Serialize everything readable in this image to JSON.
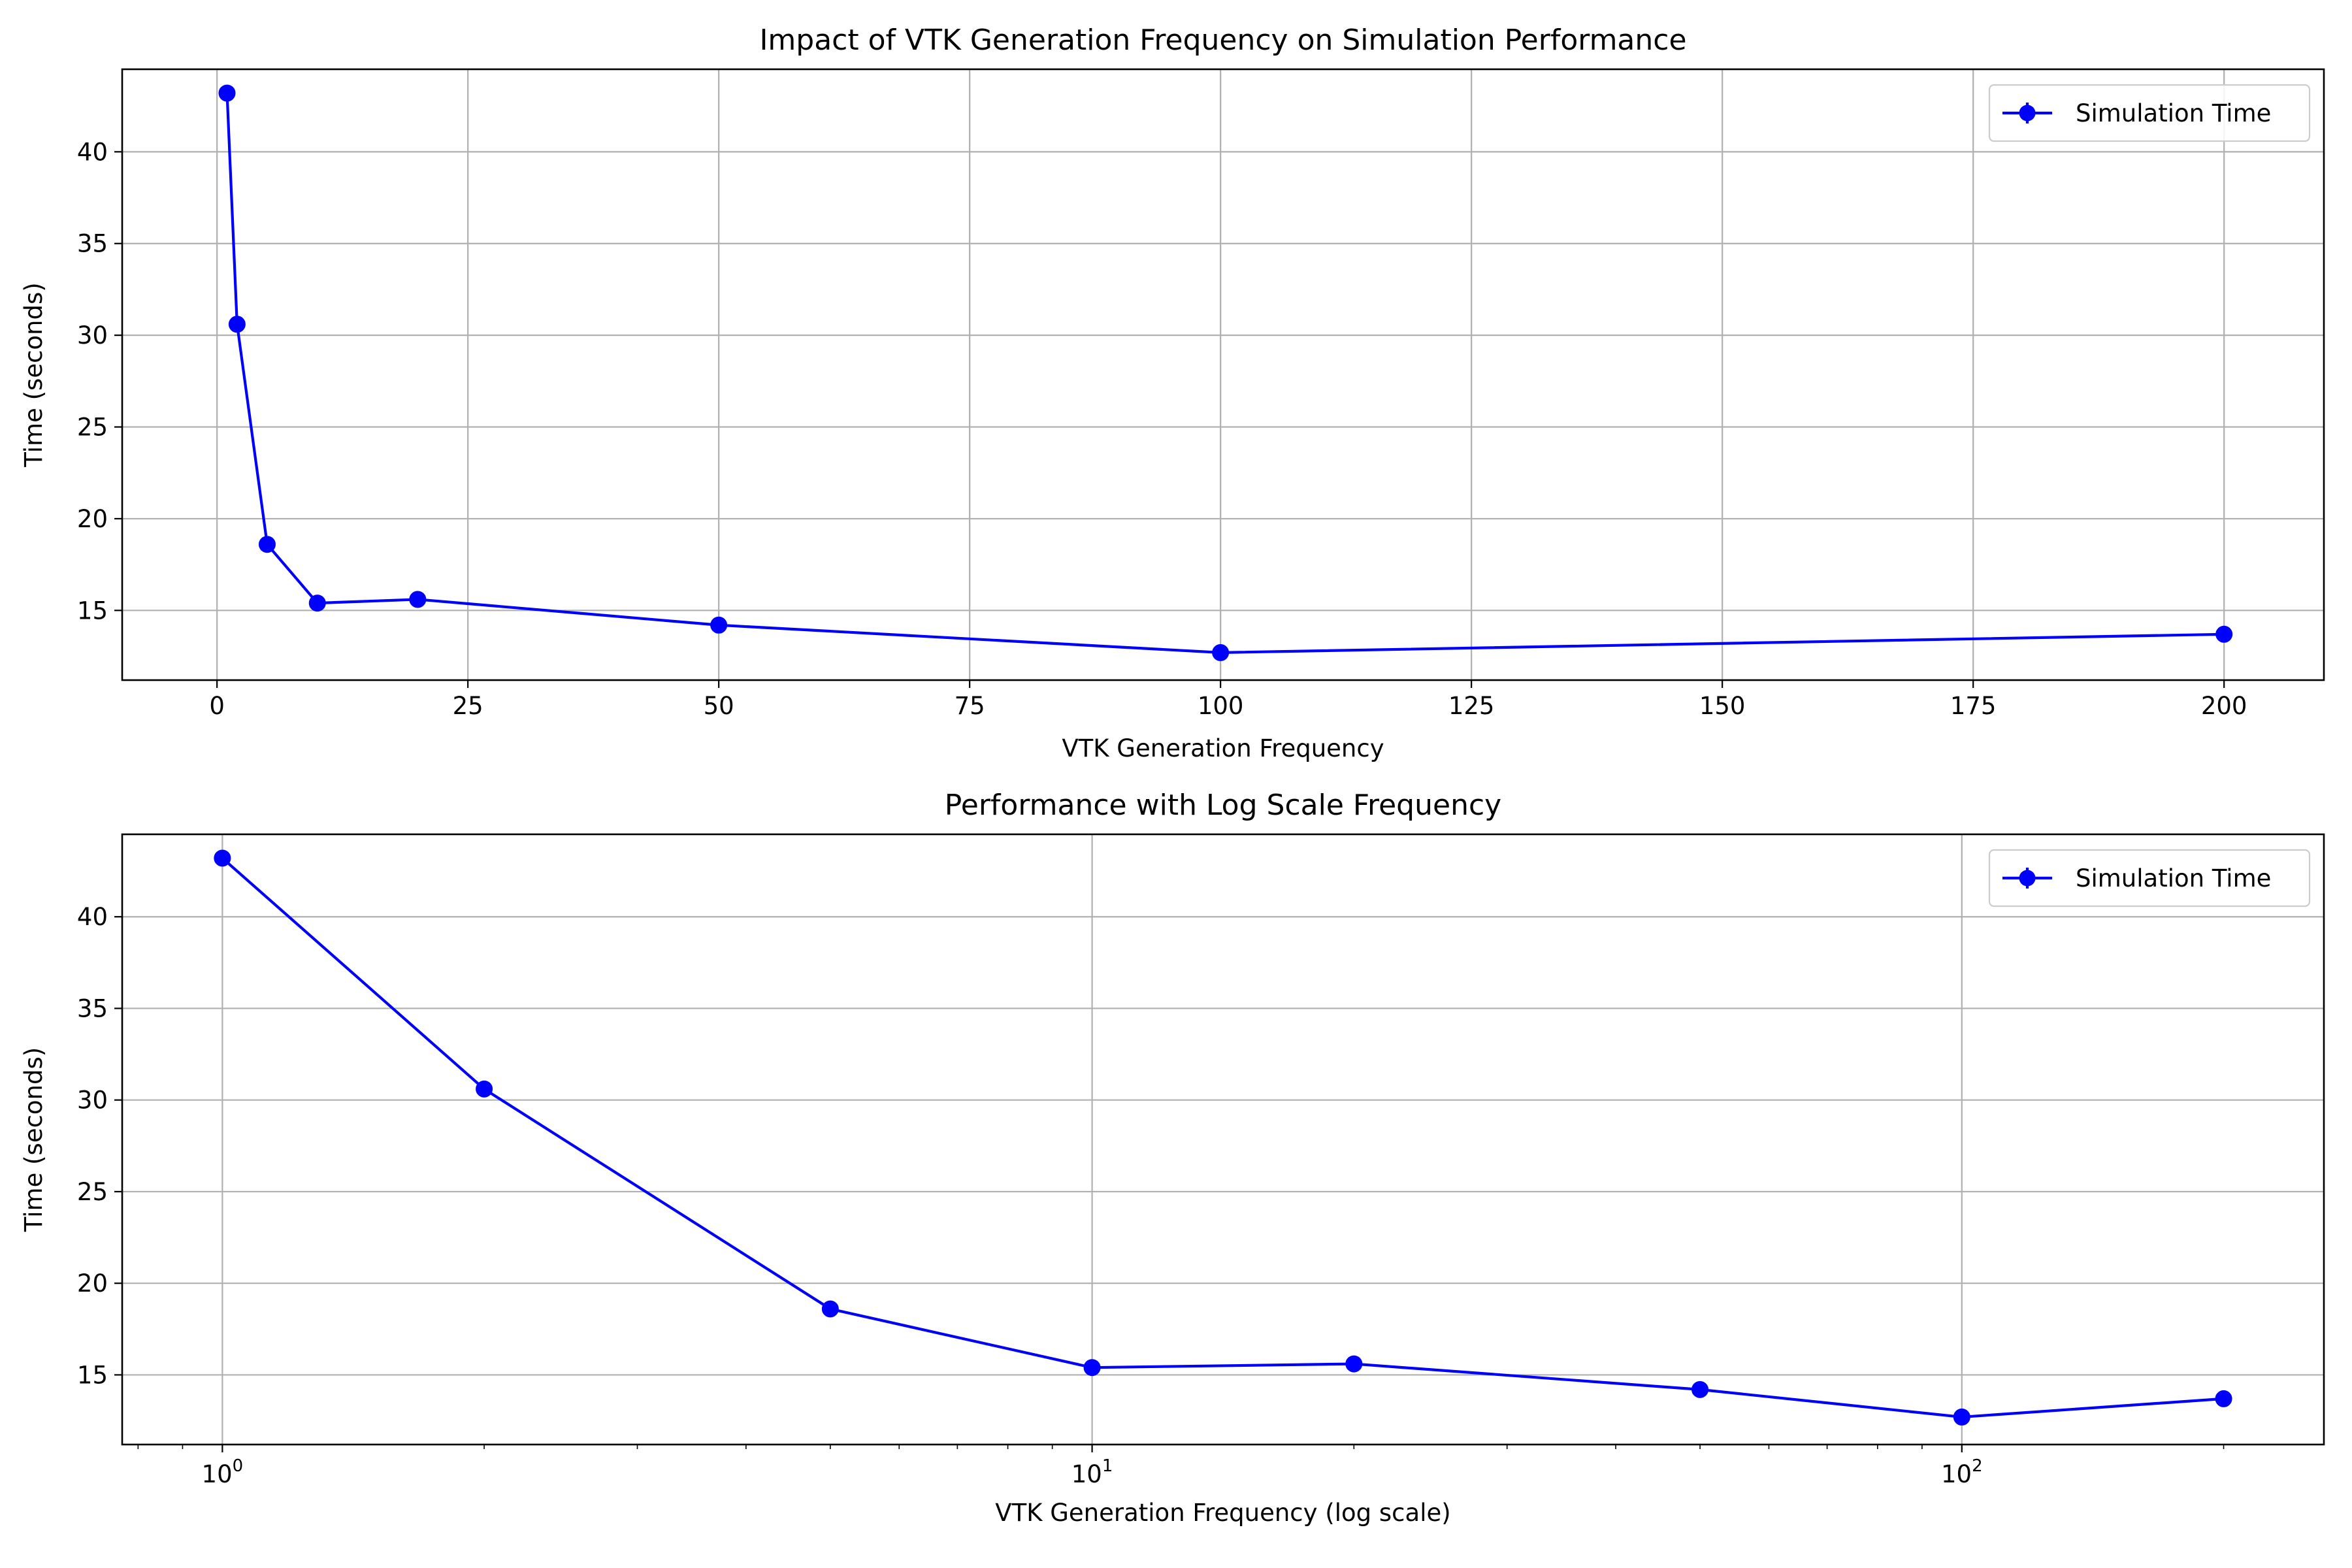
{
  "colors": {
    "series": "#0000ff",
    "grid": "#b0b0b0",
    "axes": "#000000",
    "background": "#ffffff"
  },
  "chart_data": [
    {
      "type": "line",
      "title": "Impact of VTK Generation Frequency on Simulation Performance",
      "xlabel": "VTK Generation Frequency",
      "ylabel": "Time (seconds)",
      "xscale": "linear",
      "xlim": [
        -9.45,
        209.95
      ],
      "ylim": [
        11.2,
        44.5
      ],
      "grid": true,
      "legend_position": "top-right",
      "x_ticks": [
        0,
        25,
        50,
        75,
        100,
        125,
        150,
        175,
        200
      ],
      "x_tick_labels": [
        "0",
        "25",
        "50",
        "75",
        "100",
        "125",
        "150",
        "175",
        "200"
      ],
      "y_ticks": [
        15,
        20,
        25,
        30,
        35,
        40
      ],
      "y_tick_labels": [
        "15",
        "20",
        "25",
        "30",
        "35",
        "40"
      ],
      "series": [
        {
          "name": "Simulation Time",
          "marker": "circle",
          "x": [
            1,
            2,
            5,
            10,
            20,
            50,
            100,
            200
          ],
          "y": [
            43.2,
            30.6,
            18.6,
            15.4,
            15.6,
            14.2,
            12.7,
            13.7
          ]
        }
      ]
    },
    {
      "type": "line",
      "title": "Performance with Log Scale Frequency",
      "xlabel": "VTK Generation Frequency (log scale)",
      "ylabel": "Time (seconds)",
      "xscale": "log",
      "xlim": [
        0.767,
        260.8
      ],
      "ylim": [
        11.2,
        44.5
      ],
      "grid": true,
      "legend_position": "top-right",
      "x_ticks": [
        1,
        10,
        100
      ],
      "x_tick_labels": [
        {
          "base": "10",
          "exp": "0"
        },
        {
          "base": "10",
          "exp": "1"
        },
        {
          "base": "10",
          "exp": "2"
        }
      ],
      "x_minor_ticks": [
        0.8,
        0.9,
        2,
        3,
        4,
        5,
        6,
        7,
        8,
        9,
        20,
        30,
        40,
        50,
        60,
        70,
        80,
        90,
        200
      ],
      "y_ticks": [
        15,
        20,
        25,
        30,
        35,
        40
      ],
      "y_tick_labels": [
        "15",
        "20",
        "25",
        "30",
        "35",
        "40"
      ],
      "series": [
        {
          "name": "Simulation Time",
          "marker": "circle",
          "x": [
            1,
            2,
            5,
            10,
            20,
            50,
            100,
            200
          ],
          "y": [
            43.2,
            30.6,
            18.6,
            15.4,
            15.6,
            14.2,
            12.7,
            13.7
          ]
        }
      ]
    }
  ]
}
